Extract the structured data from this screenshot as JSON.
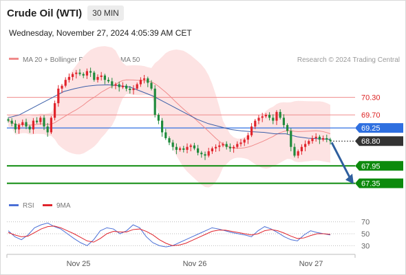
{
  "header": {
    "title": "Crude Oil (WTI)",
    "timeframe": "30 MIN",
    "timestamp": "Wednesday, November 27, 2024 4:05:39 AM CET"
  },
  "credit": "Research © 2024 Trading Central",
  "legend": {
    "ma20": {
      "label": "MA 20 + Bollinger Bands",
      "color": "#f08a8a"
    },
    "ma50": {
      "label": "MA 50",
      "color": "#3a5ea8"
    }
  },
  "price_levels": [
    {
      "value": 70.3,
      "label": "70.30",
      "kind": "resistance"
    },
    {
      "value": 69.7,
      "label": "69.70",
      "kind": "resistance"
    },
    {
      "value": 69.25,
      "label": "69.25",
      "kind": "pivot"
    },
    {
      "value": 68.8,
      "label": "68.80",
      "kind": "last"
    },
    {
      "value": 67.95,
      "label": "67.95",
      "kind": "support"
    },
    {
      "value": 67.35,
      "label": "67.35",
      "kind": "support"
    }
  ],
  "x_axis": {
    "labels": [
      "Nov 25",
      "Nov 26",
      "Nov 27"
    ]
  },
  "rsi_panel": {
    "legend_rsi": "RSI",
    "legend_ma": "9MA",
    "ticks": [
      "70",
      "50",
      "30"
    ]
  },
  "colors": {
    "bull": "#e0242c",
    "bear": "#1f8a3b",
    "support": "#0c8a0c",
    "pivot": "#2e6fe0",
    "resistance": "#f08a8a",
    "last": "#333333",
    "band": "#fde3e3"
  },
  "chart_data": {
    "type": "candlestick",
    "price_range": [
      66.8,
      71.4
    ],
    "close_series": [
      69.5,
      69.4,
      69.2,
      69.35,
      69.45,
      69.3,
      69.2,
      69.5,
      69.45,
      69.6,
      69.3,
      69.1,
      69.6,
      70.1,
      70.6,
      70.7,
      70.9,
      71.0,
      71.1,
      71.15,
      71.1,
      71.05,
      71.2,
      71.15,
      70.9,
      71.0,
      71.05,
      70.9,
      70.85,
      70.7,
      70.75,
      70.65,
      70.7,
      70.6,
      70.55,
      70.6,
      70.75,
      70.9,
      70.95,
      70.8,
      70.6,
      69.7,
      69.5,
      69.1,
      68.9,
      68.75,
      68.6,
      68.5,
      68.55,
      68.5,
      68.6,
      68.65,
      68.55,
      68.4,
      68.35,
      68.3,
      68.45,
      68.55,
      68.6,
      68.65,
      68.7,
      68.6,
      68.55,
      68.6,
      68.7,
      68.75,
      68.85,
      69.0,
      69.3,
      69.5,
      69.6,
      69.65,
      69.7,
      69.6,
      69.5,
      69.8,
      69.6,
      69.35,
      69.15,
      68.6,
      68.3,
      68.45,
      68.6,
      68.7,
      68.8,
      68.9,
      68.95,
      68.85,
      68.9,
      68.85,
      68.8
    ],
    "ma50_series": [
      69.6,
      69.7,
      69.9,
      70.1,
      70.3,
      70.5,
      70.6,
      70.68,
      70.72,
      70.73,
      70.7,
      70.65,
      70.5,
      70.35,
      70.15,
      69.95,
      69.75,
      69.55,
      69.4,
      69.3,
      69.2,
      69.15,
      69.12,
      69.1,
      69.05,
      69.05,
      68.95,
      68.9,
      68.88,
      68.86
    ],
    "rsi": [
      55,
      45,
      40,
      48,
      60,
      65,
      68,
      62,
      58,
      50,
      42,
      35,
      30,
      40,
      55,
      60,
      58,
      50,
      55,
      65,
      60,
      45,
      35,
      30,
      28,
      30,
      35,
      40,
      45,
      50,
      55,
      60,
      58,
      55,
      52,
      50,
      48,
      45,
      55,
      62,
      58,
      52,
      45,
      40,
      38,
      48,
      55,
      52,
      50,
      48
    ],
    "rsi_ma": [
      52,
      48,
      45,
      46,
      52,
      58,
      62,
      63,
      60,
      55,
      50,
      44,
      38,
      36,
      42,
      50,
      54,
      53,
      53,
      57,
      58,
      54,
      48,
      40,
      34,
      30,
      31,
      34,
      39,
      44,
      49,
      54,
      56,
      56,
      54,
      52,
      50,
      48,
      50,
      55,
      57,
      55,
      51,
      46,
      42,
      43,
      47,
      50,
      50,
      49
    ],
    "projection": {
      "from": 68.8,
      "to": 67.35,
      "direction": "down"
    }
  }
}
